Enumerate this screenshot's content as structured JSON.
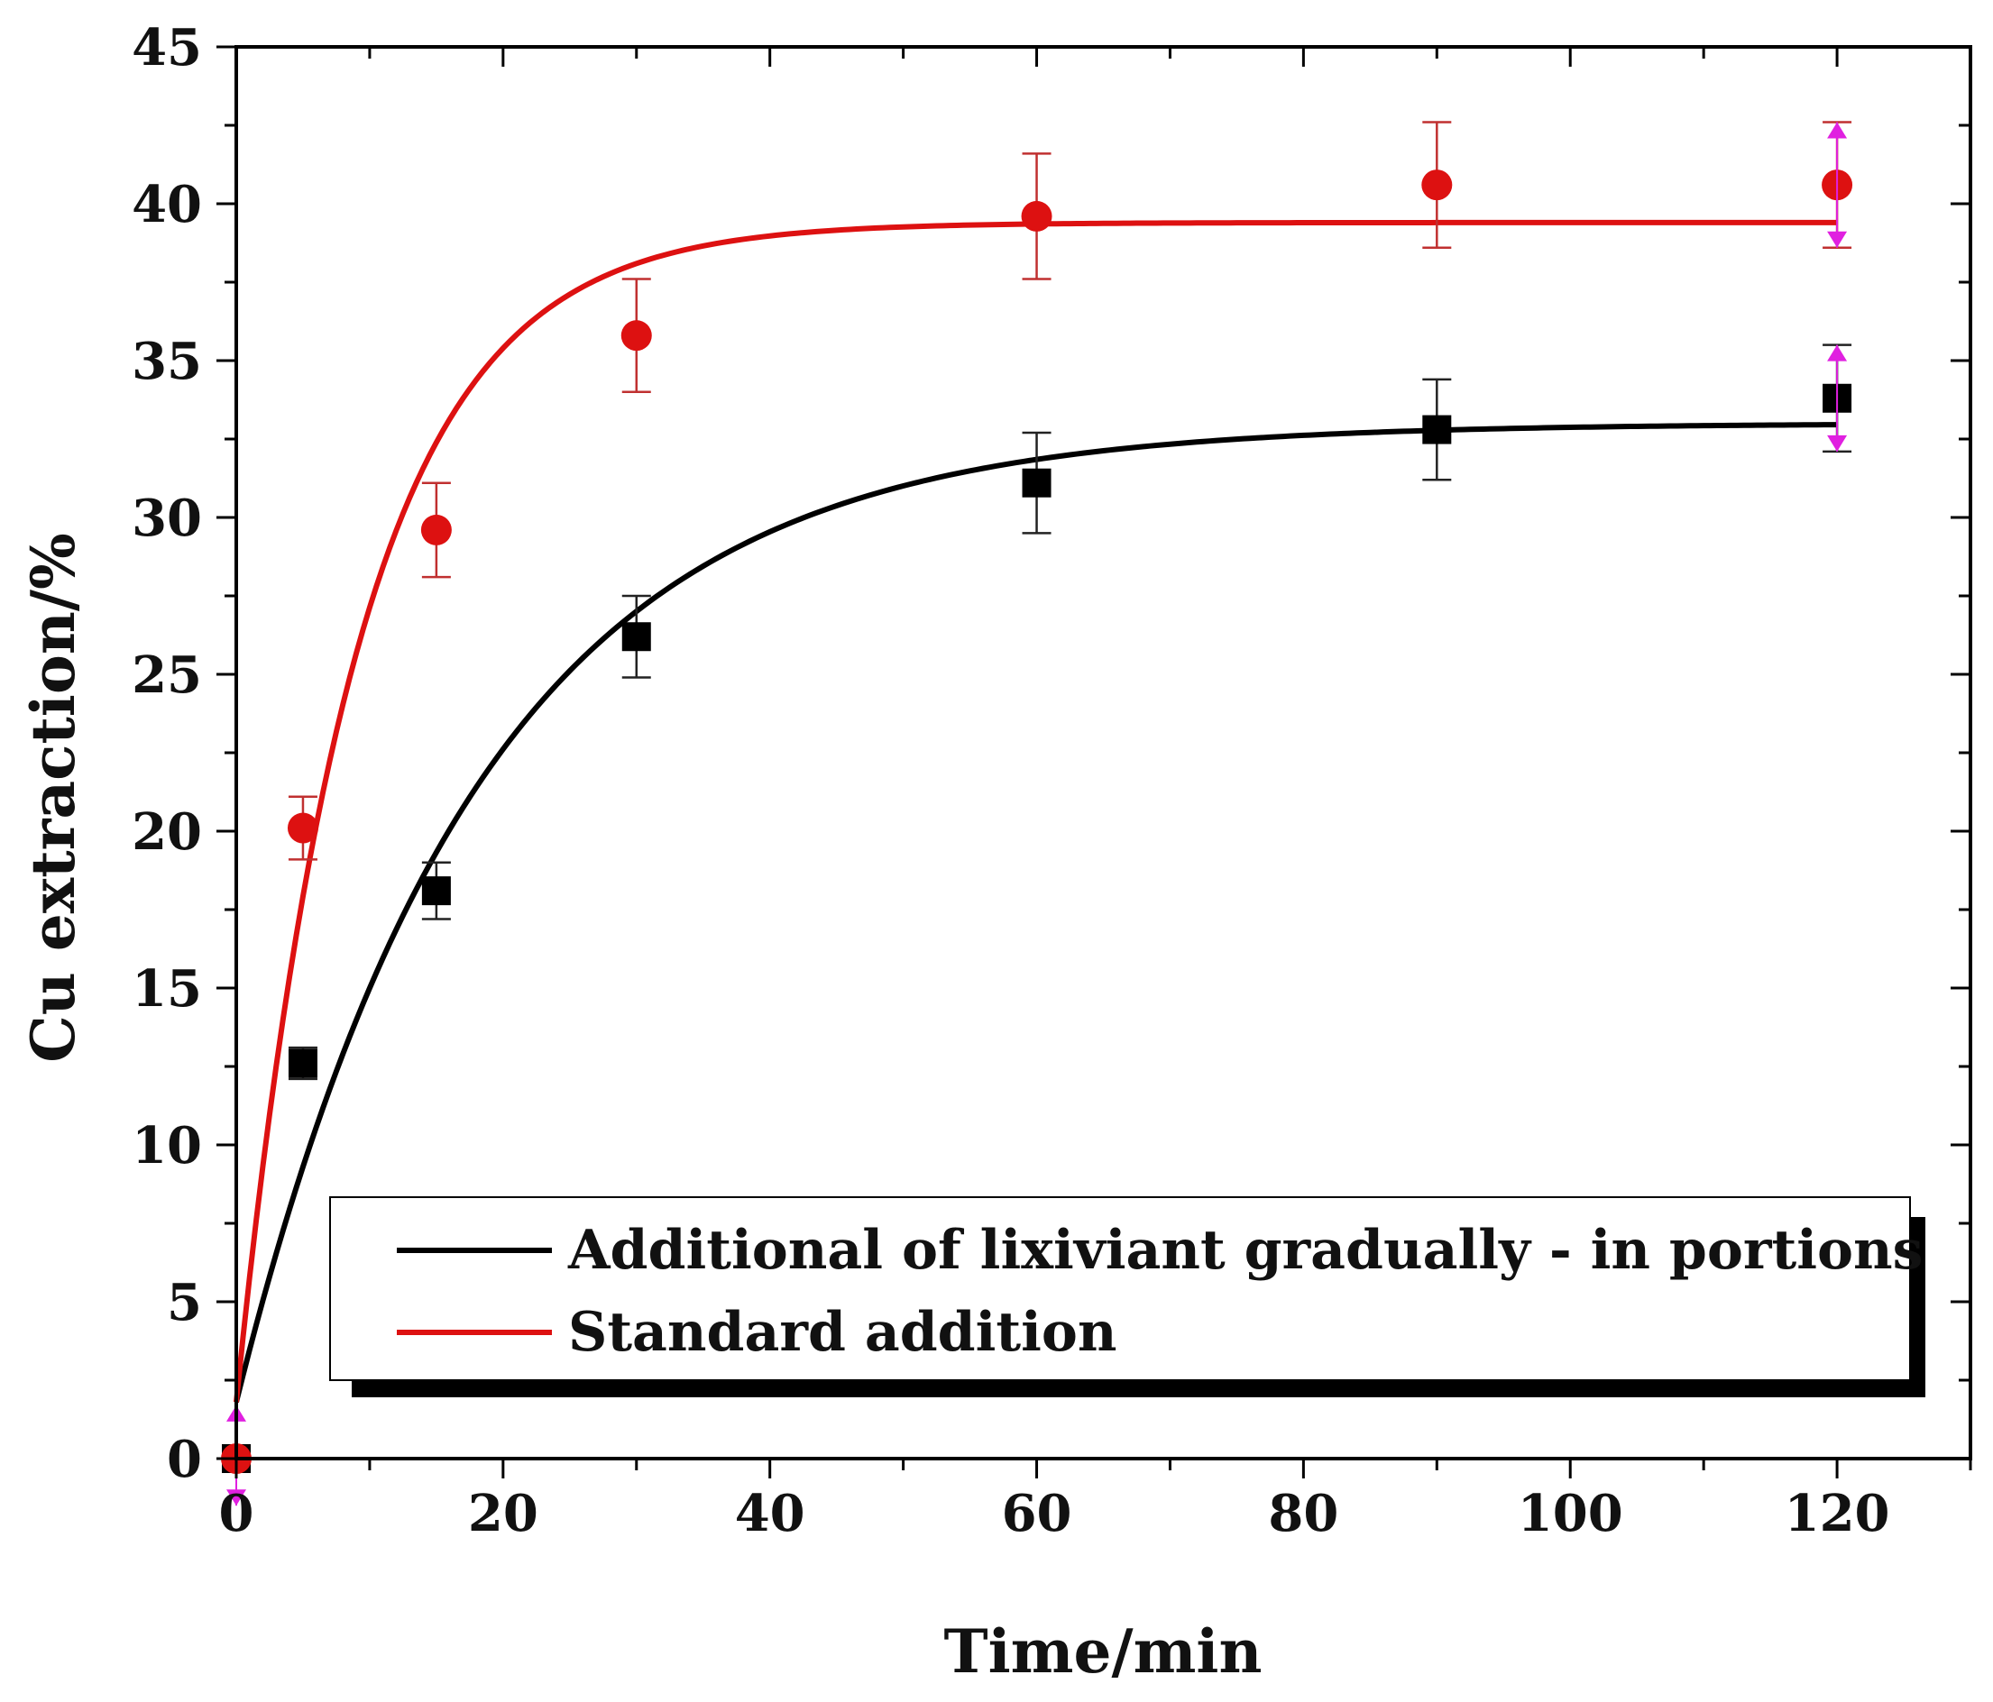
{
  "chart_data": {
    "type": "scatter",
    "xlabel": "Time/min",
    "ylabel": "Cu extraction/%",
    "xlim": [
      0,
      130
    ],
    "ylim": [
      0,
      45
    ],
    "x_ticks": [
      0,
      20,
      40,
      60,
      80,
      100,
      120
    ],
    "y_ticks": [
      0,
      5,
      10,
      15,
      20,
      25,
      30,
      35,
      40,
      45
    ],
    "grid": false,
    "legend_position": "bottom-right",
    "series": [
      {
        "name": "Additional of lixiviant gradually - in portions",
        "color": "#000000",
        "marker": "square",
        "points": [
          {
            "x": 0,
            "y": 0,
            "err": 0
          },
          {
            "x": 5,
            "y": 12.6,
            "err": 0.5
          },
          {
            "x": 15,
            "y": 18.1,
            "err": 0.9
          },
          {
            "x": 30,
            "y": 26.2,
            "err": 1.3
          },
          {
            "x": 60,
            "y": 31.1,
            "err": 1.6
          },
          {
            "x": 90,
            "y": 32.8,
            "err": 1.6
          },
          {
            "x": 120,
            "y": 33.8,
            "err": 1.7
          }
        ],
        "fit": {
          "type": "exponential",
          "plateau": 33.0,
          "rate": 0.055,
          "y0": 1.8
        }
      },
      {
        "name": "Standard addition",
        "color": "#dd1111",
        "marker": "circle",
        "points": [
          {
            "x": 0,
            "y": 0,
            "err": 0
          },
          {
            "x": 5,
            "y": 20.1,
            "err": 1.0
          },
          {
            "x": 15,
            "y": 29.6,
            "err": 1.5
          },
          {
            "x": 30,
            "y": 35.8,
            "err": 1.8
          },
          {
            "x": 60,
            "y": 39.6,
            "err": 2.0
          },
          {
            "x": 90,
            "y": 40.6,
            "err": 2.0
          },
          {
            "x": 120,
            "y": 40.6,
            "err": 2.0
          }
        ],
        "fit": {
          "type": "exponential",
          "plateau": 39.4,
          "rate": 0.112,
          "y0": 1.8
        }
      }
    ]
  }
}
